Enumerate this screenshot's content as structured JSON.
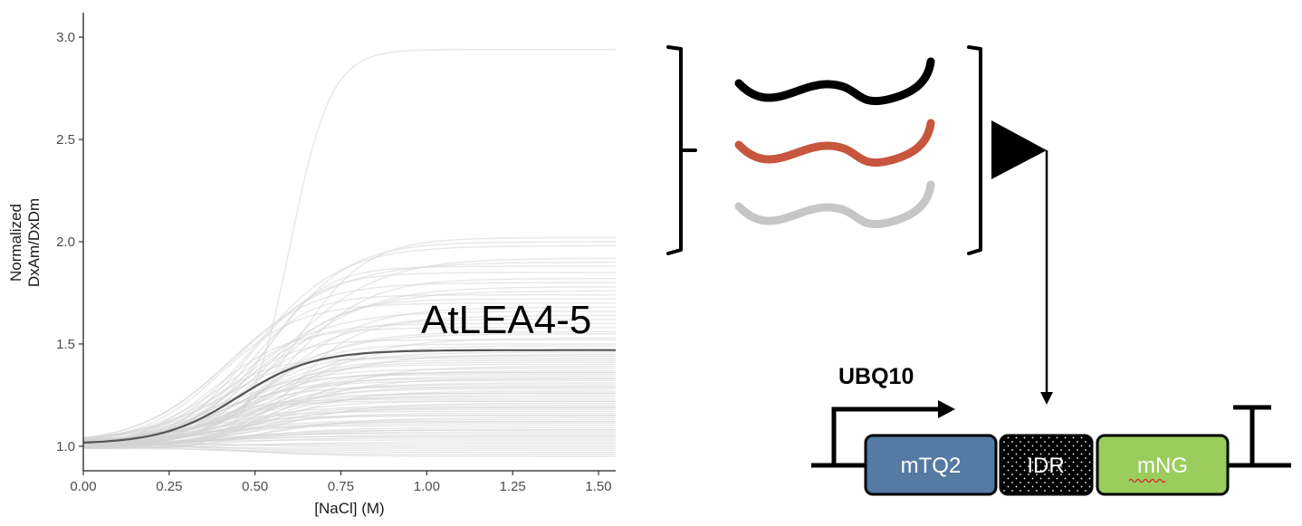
{
  "chart_data": {
    "type": "line",
    "xlabel": "[NaCl] (M)",
    "ylabel": [
      "Normalized",
      "DxAm/DxDm"
    ],
    "x_ticks": [
      "0.00",
      "0.25",
      "0.50",
      "0.75",
      "1.00",
      "1.25",
      "1.50"
    ],
    "y_ticks": [
      "1.0",
      "1.5",
      "2.0",
      "2.5",
      "3.0"
    ],
    "xlim": [
      0,
      1.55
    ],
    "ylim": [
      0.88,
      3.12
    ],
    "grid": false,
    "highlight": {
      "name": "AtLEA4-5",
      "base": 1.01,
      "top": 1.47,
      "midpoint": 0.45,
      "width": 0.11
    },
    "background_series_description": "many gray sigmoidal curves, plateaus from about 0.95 to 2.0, one reaching 2.94",
    "background_plateaus": [
      2.94,
      2.02,
      2.0,
      1.98,
      1.92,
      1.9,
      1.88,
      1.85,
      1.82,
      1.8,
      1.78,
      1.76,
      1.74,
      1.72,
      1.7,
      1.68,
      1.66,
      1.64,
      1.62,
      1.6,
      1.58,
      1.56,
      1.55,
      1.53,
      1.52,
      1.5,
      1.49,
      1.47,
      1.46,
      1.45,
      1.43,
      1.42,
      1.4,
      1.39,
      1.38,
      1.37,
      1.36,
      1.35,
      1.34,
      1.33,
      1.32,
      1.31,
      1.3,
      1.29,
      1.28,
      1.27,
      1.26,
      1.25,
      1.24,
      1.23,
      1.22,
      1.21,
      1.2,
      1.19,
      1.18,
      1.17,
      1.16,
      1.15,
      1.14,
      1.13,
      1.12,
      1.11,
      1.1,
      1.09,
      1.08,
      1.07,
      1.06,
      1.05,
      1.04,
      1.03,
      1.02,
      1.01,
      1.0,
      0.99,
      0.98,
      0.97,
      0.96,
      0.95,
      1.44,
      1.41,
      1.36,
      1.33,
      1.29,
      1.26,
      1.22,
      1.19,
      1.15,
      1.12,
      1.08,
      1.05
    ],
    "background_midpoints": [
      0.6,
      0.62,
      0.55,
      0.5,
      0.58,
      0.45,
      0.52,
      0.48,
      0.6,
      0.42,
      0.55,
      0.5,
      0.47,
      0.53,
      0.4,
      0.57,
      0.44,
      0.5,
      0.62,
      0.46,
      0.38,
      0.52,
      0.49,
      0.55,
      0.43,
      0.5,
      0.58,
      0.41,
      0.47,
      0.53,
      0.36,
      0.5,
      0.45,
      0.6,
      0.39,
      0.48,
      0.54,
      0.42,
      0.5,
      0.57,
      0.35,
      0.46,
      0.52,
      0.4,
      0.49,
      0.55,
      0.37,
      0.44,
      0.51,
      0.33,
      0.47,
      0.58,
      0.4,
      0.45,
      0.52,
      0.36,
      0.48,
      0.42,
      0.55,
      0.38,
      0.5,
      0.44,
      0.32,
      0.47,
      0.53,
      0.4,
      0.35,
      0.49,
      0.43,
      0.3,
      0.46,
      0.5,
      0.38,
      0.42,
      0.33,
      0.45,
      0.36,
      0.4,
      0.48,
      0.51,
      0.44,
      0.39,
      0.47,
      0.41,
      0.37,
      0.46,
      0.34,
      0.43,
      0.4,
      0.38
    ]
  },
  "diagram": {
    "idr_colors": [
      "#000000",
      "#c8553d",
      "#c6c6c6"
    ],
    "construct": {
      "promoter_label": "UBQ10",
      "segments": [
        {
          "label": "mTQ2",
          "color": "#557aa3"
        },
        {
          "label": "IDR",
          "color": "#000000"
        },
        {
          "label": "mNG",
          "color": "#9acd5c"
        }
      ]
    }
  }
}
